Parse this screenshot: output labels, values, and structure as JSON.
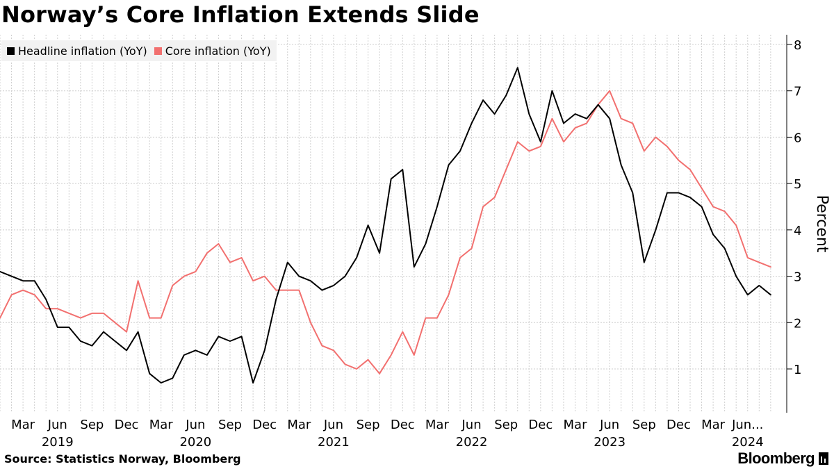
{
  "chart_data": {
    "type": "line",
    "title": "Norway’s Core Inflation Extends Slide",
    "ylabel": "Percent",
    "xlabel": "",
    "ylim": [
      0,
      8.2
    ],
    "yticks": [
      1,
      2,
      3,
      4,
      5,
      6,
      7,
      8
    ],
    "grid": true,
    "legend_position": "top-left",
    "x_start": "2019-01",
    "month_labels": [
      "Mar",
      "Jun",
      "Sep",
      "Dec",
      "Mar",
      "Jun",
      "Sep",
      "Dec",
      "Mar",
      "Jun",
      "Sep",
      "Dec",
      "Mar",
      "Jun",
      "Sep",
      "Dec",
      "Mar",
      "Jun",
      "Sep",
      "Dec",
      "Mar",
      "Jun..."
    ],
    "year_labels": [
      "2019",
      "2020",
      "2021",
      "2022",
      "2023",
      "2024"
    ],
    "series": [
      {
        "name": "Headline inflation (YoY)",
        "color": "#000000",
        "values": [
          3.1,
          3.0,
          2.9,
          2.9,
          2.5,
          1.9,
          1.9,
          1.6,
          1.5,
          1.8,
          1.6,
          1.4,
          1.8,
          0.9,
          0.7,
          0.8,
          1.3,
          1.4,
          1.3,
          1.7,
          1.6,
          1.7,
          0.7,
          1.4,
          2.5,
          3.3,
          3.0,
          2.9,
          2.7,
          2.8,
          3.0,
          3.4,
          4.1,
          3.5,
          5.1,
          5.3,
          3.2,
          3.7,
          4.5,
          5.4,
          5.7,
          6.3,
          6.8,
          6.5,
          6.9,
          7.5,
          6.5,
          5.9,
          7.0,
          6.3,
          6.5,
          6.4,
          6.7,
          6.4,
          5.4,
          4.8,
          3.3,
          4.0,
          4.8,
          4.8,
          4.7,
          4.5,
          3.9,
          3.6,
          3.0,
          2.6,
          2.8,
          2.6
        ]
      },
      {
        "name": "Core inflation (YoY)",
        "color": "#f2706f",
        "values": [
          2.1,
          2.6,
          2.7,
          2.6,
          2.3,
          2.3,
          2.2,
          2.1,
          2.2,
          2.2,
          2.0,
          1.8,
          2.9,
          2.1,
          2.1,
          2.8,
          3.0,
          3.1,
          3.5,
          3.7,
          3.3,
          3.4,
          2.9,
          3.0,
          2.7,
          2.7,
          2.7,
          2.0,
          1.5,
          1.4,
          1.1,
          1.0,
          1.2,
          0.9,
          1.3,
          1.8,
          1.3,
          2.1,
          2.1,
          2.6,
          3.4,
          3.6,
          4.5,
          4.7,
          5.3,
          5.9,
          5.7,
          5.8,
          6.4,
          5.9,
          6.2,
          6.3,
          6.7,
          7.0,
          6.4,
          6.3,
          5.7,
          6.0,
          5.8,
          5.5,
          5.3,
          4.9,
          4.5,
          4.4,
          4.1,
          3.4,
          3.3,
          3.2
        ]
      }
    ]
  },
  "legend": {
    "items": [
      {
        "label": "Headline inflation (YoY)",
        "color": "#000000"
      },
      {
        "label": "Core inflation (YoY)",
        "color": "#f2706f"
      }
    ]
  },
  "footer": {
    "source": "Source: Statistics Norway, Bloomberg",
    "brand": "Bloomberg"
  }
}
